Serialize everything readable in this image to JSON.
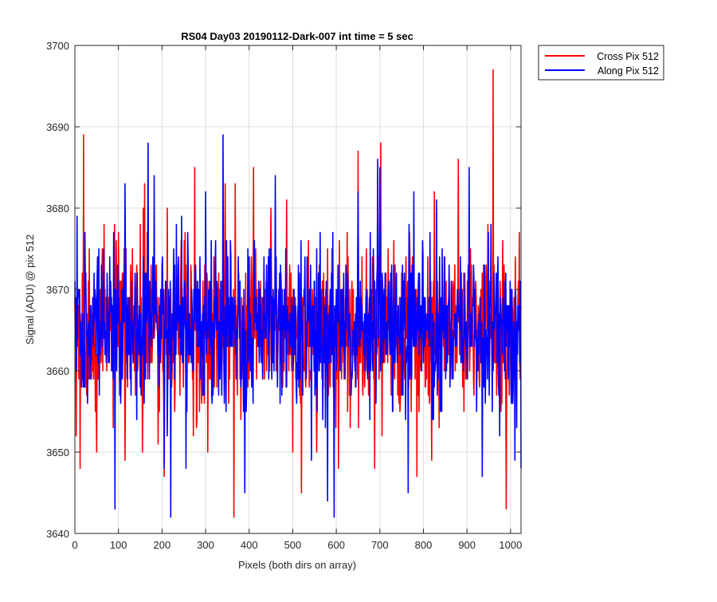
{
  "chart_data": {
    "type": "line",
    "title": "RS04 Day03 20190112-Dark-007 int time = 5 sec",
    "xlabel": "Pixels (both dirs on array)",
    "ylabel": "Signal (ADU) @ pix 512",
    "xlim": [
      0,
      1024
    ],
    "ylim": [
      3640,
      3700
    ],
    "xticks": [
      0,
      100,
      200,
      300,
      400,
      500,
      600,
      700,
      800,
      900,
      1000
    ],
    "yticks": [
      3640,
      3650,
      3660,
      3670,
      3680,
      3690,
      3700
    ],
    "grid": true,
    "legend_position": "outside-top-right",
    "series": [
      {
        "name": "Cross Pix 512",
        "color": "#ff0000",
        "baseline": 3665,
        "noise_sd": 4.8,
        "peaks": [
          {
            "x": 3,
            "y": 3652
          },
          {
            "x": 12,
            "y": 3648
          },
          {
            "x": 20,
            "y": 3689
          },
          {
            "x": 50,
            "y": 3650
          },
          {
            "x": 100,
            "y": 3677
          },
          {
            "x": 115,
            "y": 3649
          },
          {
            "x": 155,
            "y": 3650
          },
          {
            "x": 160,
            "y": 3683
          },
          {
            "x": 205,
            "y": 3647
          },
          {
            "x": 212,
            "y": 3680
          },
          {
            "x": 275,
            "y": 3685
          },
          {
            "x": 305,
            "y": 3650
          },
          {
            "x": 345,
            "y": 3683
          },
          {
            "x": 365,
            "y": 3642
          },
          {
            "x": 368,
            "y": 3683
          },
          {
            "x": 410,
            "y": 3685
          },
          {
            "x": 450,
            "y": 3680
          },
          {
            "x": 500,
            "y": 3650
          },
          {
            "x": 520,
            "y": 3645
          },
          {
            "x": 555,
            "y": 3650
          },
          {
            "x": 605,
            "y": 3648
          },
          {
            "x": 650,
            "y": 3687
          },
          {
            "x": 688,
            "y": 3648
          },
          {
            "x": 702,
            "y": 3688
          },
          {
            "x": 785,
            "y": 3647
          },
          {
            "x": 825,
            "y": 3682
          },
          {
            "x": 880,
            "y": 3686
          },
          {
            "x": 960,
            "y": 3697
          },
          {
            "x": 990,
            "y": 3643
          },
          {
            "x": 1020,
            "y": 3677
          }
        ]
      },
      {
        "name": "Along Pix 512",
        "color": "#0000ff",
        "baseline": 3665.5,
        "noise_sd": 4.6,
        "peaks": [
          {
            "x": 5,
            "y": 3679
          },
          {
            "x": 92,
            "y": 3643
          },
          {
            "x": 115,
            "y": 3683
          },
          {
            "x": 168,
            "y": 3688
          },
          {
            "x": 182,
            "y": 3684
          },
          {
            "x": 205,
            "y": 3648
          },
          {
            "x": 220,
            "y": 3642
          },
          {
            "x": 255,
            "y": 3648
          },
          {
            "x": 300,
            "y": 3682
          },
          {
            "x": 340,
            "y": 3689
          },
          {
            "x": 390,
            "y": 3645
          },
          {
            "x": 412,
            "y": 3676
          },
          {
            "x": 460,
            "y": 3684
          },
          {
            "x": 580,
            "y": 3644
          },
          {
            "x": 595,
            "y": 3642
          },
          {
            "x": 650,
            "y": 3682
          },
          {
            "x": 695,
            "y": 3686
          },
          {
            "x": 700,
            "y": 3685
          },
          {
            "x": 765,
            "y": 3645
          },
          {
            "x": 778,
            "y": 3682
          },
          {
            "x": 830,
            "y": 3681
          },
          {
            "x": 842,
            "y": 3655
          },
          {
            "x": 905,
            "y": 3685
          },
          {
            "x": 935,
            "y": 3647
          },
          {
            "x": 975,
            "y": 3652
          },
          {
            "x": 1010,
            "y": 3649
          },
          {
            "x": 1024,
            "y": 3648
          }
        ]
      }
    ]
  }
}
